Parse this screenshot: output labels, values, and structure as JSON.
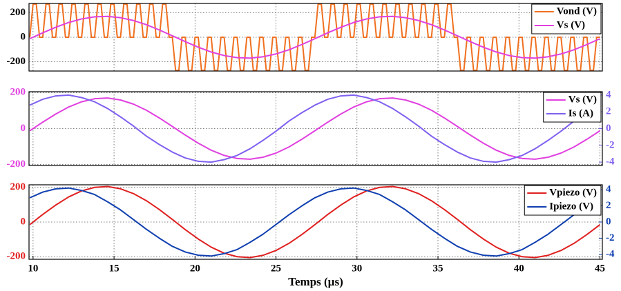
{
  "chart_data": [
    {
      "type": "line",
      "xlim": [
        9.75,
        45.15
      ],
      "ylim": [
        -275,
        275
      ],
      "yticks": [
        -200,
        0,
        200
      ],
      "grid": true,
      "legend": "upper right",
      "ytick_color": "#000000",
      "series": [
        {
          "name": "Vond (V)",
          "color": "#f07020",
          "x": [
            9.8,
            10.0,
            10.2,
            10.4,
            10.6,
            10.8,
            11.0,
            11.2,
            11.4,
            11.6,
            11.8,
            12.0,
            12.2,
            12.4,
            12.6,
            12.8,
            13.0,
            13.2,
            13.4,
            13.6,
            13.8,
            14.0,
            14.2,
            14.4,
            14.6,
            14.8,
            15.0,
            15.2,
            15.4,
            15.6,
            15.8,
            16.0,
            16.2,
            16.4,
            16.6,
            16.8,
            17.0,
            17.2,
            17.4,
            17.6,
            17.8,
            18.0,
            18.2,
            18.4,
            18.6,
            18.8,
            19.0,
            19.2,
            19.4,
            19.6,
            19.8,
            20.0,
            20.2,
            20.4,
            20.6,
            20.8,
            21.0,
            21.2,
            21.4,
            21.6,
            21.8,
            22.0,
            22.2,
            22.4,
            22.6,
            22.8,
            23.0,
            23.2,
            23.4,
            23.6,
            23.8,
            24.0,
            24.2,
            24.4,
            24.6,
            24.8,
            25.0,
            25.2,
            25.4,
            25.6,
            25.8,
            26.0,
            26.2,
            26.4,
            26.6,
            26.8,
            27.0,
            27.2,
            27.4,
            27.6,
            27.8,
            28.0,
            28.2,
            28.4,
            28.6,
            28.8,
            29.0,
            29.2,
            29.4,
            29.6,
            29.8,
            30.0,
            30.2,
            30.4,
            30.6,
            30.8,
            31.0,
            31.2,
            31.4,
            31.6,
            31.8,
            32.0,
            32.2,
            32.4,
            32.6,
            32.8,
            33.0,
            33.2,
            33.4,
            33.6,
            33.8,
            34.0,
            34.2,
            34.4,
            34.6,
            34.8,
            35.0,
            35.2,
            35.4,
            35.6,
            35.8,
            36.0,
            36.2,
            36.4,
            36.6,
            36.8,
            37.0,
            37.2,
            37.4,
            37.6,
            37.8,
            38.0,
            38.2,
            38.4,
            38.6,
            38.8,
            39.0,
            39.2,
            39.4,
            39.6,
            39.8,
            40.0,
            40.2,
            40.4,
            40.6,
            40.8,
            41.0,
            41.2,
            41.4,
            41.6,
            41.8,
            42.0,
            42.2,
            42.4,
            42.6,
            42.8,
            43.0,
            43.2,
            43.4,
            43.6,
            43.8,
            44.0,
            44.2,
            44.4,
            44.6,
            44.8,
            45.0
          ],
          "values": [
            0,
            270,
            270,
            0,
            0,
            270,
            270,
            0,
            0,
            270,
            270,
            0,
            0,
            270,
            270,
            0,
            0,
            270,
            270,
            0,
            0,
            270,
            270,
            0,
            0,
            270,
            270,
            0,
            0,
            270,
            270,
            0,
            0,
            270,
            270,
            0,
            0,
            270,
            270,
            0,
            0,
            270,
            270,
            0,
            0,
            -270,
            -270,
            0,
            0,
            -270,
            -270,
            0,
            0,
            -270,
            -270,
            0,
            0,
            -270,
            -270,
            0,
            0,
            -270,
            -270,
            0,
            0,
            -270,
            -270,
            0,
            0,
            -270,
            -270,
            0,
            0,
            -270,
            -270,
            0,
            0,
            -270,
            -270,
            0,
            0,
            -270,
            -270,
            0,
            0,
            -270,
            -270,
            0,
            0,
            270,
            270,
            0,
            0,
            270,
            270,
            0,
            0,
            270,
            270,
            0,
            0,
            270,
            270,
            0,
            0,
            270,
            270,
            0,
            0,
            270,
            270,
            0,
            0,
            270,
            270,
            0,
            0,
            270,
            270,
            0,
            0,
            270,
            270,
            0,
            0,
            270,
            270,
            0,
            0,
            270,
            270,
            0,
            0,
            -270,
            -270,
            0,
            0,
            -270,
            -270,
            0,
            0,
            -270,
            -270,
            0,
            0,
            -270,
            -270,
            0,
            0,
            -270,
            -270,
            0,
            0,
            -270,
            -270,
            0,
            0,
            -270,
            -270,
            0,
            0,
            -270,
            -270,
            0,
            0,
            -270,
            -270,
            0,
            0,
            -270,
            -270,
            0,
            0,
            -270,
            -270,
            0,
            0
          ]
        },
        {
          "name": "Vs (V)",
          "color": "#e040e0",
          "x": [
            9.8,
            10.6,
            11.4,
            12.2,
            13.0,
            13.8,
            14.6,
            15.4,
            16.2,
            17.0,
            17.8,
            18.6,
            19.4,
            20.2,
            21.0,
            21.8,
            22.6,
            23.4,
            24.2,
            25.0,
            25.8,
            26.6,
            27.4,
            28.2,
            29.0,
            29.8,
            30.6,
            31.4,
            32.2,
            33.0,
            33.8,
            34.6,
            35.4,
            36.2,
            37.0,
            37.8,
            38.6,
            39.4,
            40.2,
            41.0,
            41.8,
            42.6,
            43.4,
            44.2,
            45.0
          ],
          "values": [
            -12,
            36,
            81,
            120,
            149,
            166,
            170,
            159,
            136,
            102,
            59,
            12,
            -36,
            -81,
            -120,
            -149,
            -166,
            -170,
            -159,
            -136,
            -102,
            -59,
            -12,
            36,
            81,
            120,
            149,
            166,
            170,
            159,
            136,
            102,
            59,
            12,
            -36,
            -81,
            -120,
            -149,
            -166,
            -170,
            -159,
            -136,
            -102,
            -59,
            -12
          ]
        }
      ]
    },
    {
      "type": "line",
      "xlim": [
        9.75,
        45.15
      ],
      "ylim": [
        -205,
        205
      ],
      "yticks": [
        -200,
        0,
        200
      ],
      "y2lim": [
        -4.4,
        4.4
      ],
      "y2ticks": [
        -4,
        -2,
        0,
        2,
        4
      ],
      "grid": true,
      "legend": "upper right",
      "ytick_color": "#e040e0",
      "y2tick_color": "#8060f0",
      "x": [
        9.8,
        10.6,
        11.4,
        12.2,
        13.0,
        13.8,
        14.6,
        15.4,
        16.2,
        17.0,
        17.8,
        18.6,
        19.4,
        20.2,
        21.0,
        21.8,
        22.6,
        23.4,
        24.2,
        25.0,
        25.8,
        26.6,
        27.4,
        28.2,
        29.0,
        29.8,
        30.6,
        31.4,
        32.2,
        33.0,
        33.8,
        34.6,
        35.4,
        36.2,
        37.0,
        37.8,
        38.6,
        39.4,
        40.2,
        41.0,
        41.8,
        42.6,
        43.4,
        44.2,
        45.0
      ],
      "series": [
        {
          "name": "Vs (V)",
          "color": "#e040e0",
          "values": [
            -12,
            36,
            81,
            120,
            149,
            166,
            170,
            159,
            136,
            102,
            59,
            12,
            -36,
            -81,
            -120,
            -149,
            -166,
            -170,
            -159,
            -136,
            -102,
            -59,
            -12,
            36,
            81,
            120,
            149,
            166,
            170,
            159,
            136,
            102,
            59,
            12,
            -36,
            -81,
            -120,
            -149,
            -166,
            -170,
            -159,
            -136,
            -102,
            -59,
            -12
          ]
        },
        {
          "name": "Is (A)",
          "color": "#8060f0",
          "axis": "y2",
          "values": [
            2.8,
            3.5,
            3.9,
            4.0,
            3.7,
            3.2,
            2.4,
            1.4,
            0.3,
            -0.9,
            -1.9,
            -2.8,
            -3.5,
            -3.9,
            -4.0,
            -3.7,
            -3.2,
            -2.4,
            -1.4,
            -0.3,
            0.9,
            1.9,
            2.8,
            3.5,
            3.9,
            4.0,
            3.7,
            3.2,
            2.4,
            1.4,
            0.3,
            -0.9,
            -1.9,
            -2.8,
            -3.5,
            -3.9,
            -4.0,
            -3.7,
            -3.2,
            -2.4,
            -1.4,
            -0.3,
            0.9,
            1.9,
            2.8
          ]
        }
      ]
    },
    {
      "type": "line",
      "xlabel": "Temps (µs)",
      "xlim": [
        9.75,
        45.15
      ],
      "xticks": [
        10,
        15,
        20,
        25,
        30,
        35,
        40,
        45
      ],
      "ylim": [
        -215,
        215
      ],
      "yticks": [
        -200,
        0,
        200
      ],
      "y2lim": [
        -4.6,
        4.6
      ],
      "y2ticks": [
        -4,
        -2,
        0,
        2,
        4
      ],
      "grid": true,
      "legend": "upper right",
      "ytick_color": "#e02020",
      "y2tick_color": "#1040b0",
      "x": [
        9.8,
        10.6,
        11.4,
        12.2,
        13.0,
        13.8,
        14.6,
        15.4,
        16.2,
        17.0,
        17.8,
        18.6,
        19.4,
        20.2,
        21.0,
        21.8,
        22.6,
        23.4,
        24.2,
        25.0,
        25.8,
        26.6,
        27.4,
        28.2,
        29.0,
        29.8,
        30.6,
        31.4,
        32.2,
        33.0,
        33.8,
        34.6,
        35.4,
        36.2,
        37.0,
        37.8,
        38.6,
        39.4,
        40.2,
        41.0,
        41.8,
        42.6,
        43.4,
        44.2,
        45.0
      ],
      "series": [
        {
          "name": "Vpiezo (V)",
          "color": "#e02020",
          "values": [
            -15,
            44,
            98,
            145,
            180,
            200,
            205,
            192,
            164,
            123,
            72,
            15,
            -44,
            -98,
            -145,
            -180,
            -200,
            -205,
            -192,
            -164,
            -123,
            -72,
            -15,
            44,
            98,
            145,
            180,
            200,
            205,
            192,
            164,
            123,
            72,
            15,
            -44,
            -98,
            -145,
            -180,
            -200,
            -205,
            -192,
            -164,
            -123,
            -72,
            -15
          ]
        },
        {
          "name": "Ipiezo (V)",
          "color": "#1040b0",
          "axis": "y2",
          "values": [
            3.0,
            3.7,
            4.1,
            4.2,
            3.9,
            3.4,
            2.5,
            1.5,
            0.3,
            -0.9,
            -2.0,
            -3.0,
            -3.7,
            -4.1,
            -4.2,
            -3.9,
            -3.4,
            -2.5,
            -1.5,
            -0.3,
            0.9,
            2.0,
            3.0,
            3.7,
            4.1,
            4.2,
            3.9,
            3.4,
            2.5,
            1.5,
            0.3,
            -0.9,
            -2.0,
            -3.0,
            -3.7,
            -4.1,
            -4.2,
            -3.9,
            -3.4,
            -2.5,
            -1.5,
            -0.3,
            0.9,
            2.0,
            3.0
          ]
        }
      ]
    }
  ]
}
